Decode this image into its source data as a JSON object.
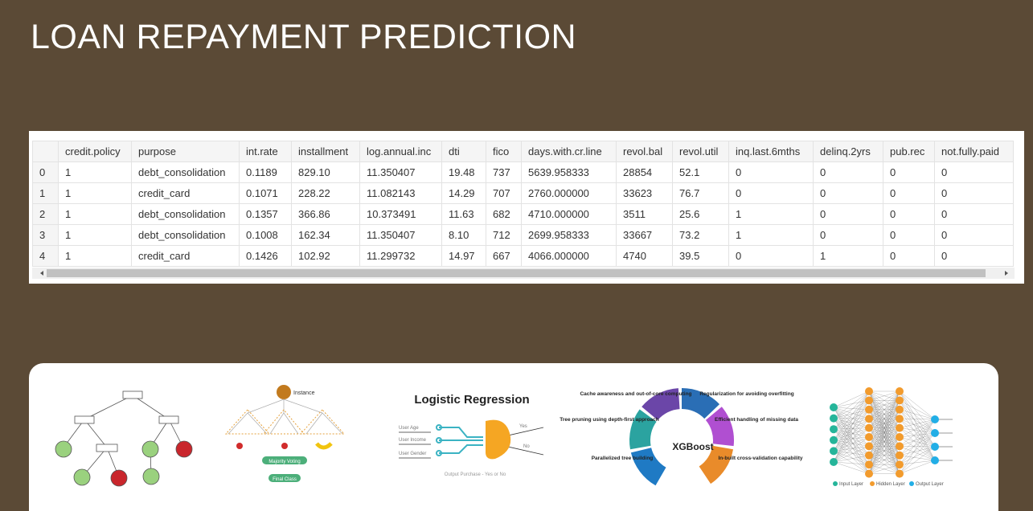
{
  "title": "LOAN REPAYMENT PREDICTION",
  "table": {
    "columns": [
      "credit.policy",
      "purpose",
      "int.rate",
      "installment",
      "log.annual.inc",
      "dti",
      "fico",
      "days.with.cr.line",
      "revol.bal",
      "revol.util",
      "inq.last.6mths",
      "delinq.2yrs",
      "pub.rec",
      "not.fully.paid"
    ],
    "rows": [
      [
        "0",
        "1",
        "debt_consolidation",
        "0.1189",
        "829.10",
        "11.350407",
        "19.48",
        "737",
        "5639.958333",
        "28854",
        "52.1",
        "0",
        "0",
        "0",
        "0"
      ],
      [
        "1",
        "1",
        "credit_card",
        "0.1071",
        "228.22",
        "11.082143",
        "14.29",
        "707",
        "2760.000000",
        "33623",
        "76.7",
        "0",
        "0",
        "0",
        "0"
      ],
      [
        "2",
        "1",
        "debt_consolidation",
        "0.1357",
        "366.86",
        "10.373491",
        "11.63",
        "682",
        "4710.000000",
        "3511",
        "25.6",
        "1",
        "0",
        "0",
        "0"
      ],
      [
        "3",
        "1",
        "debt_consolidation",
        "0.1008",
        "162.34",
        "11.350407",
        "8.10",
        "712",
        "2699.958333",
        "33667",
        "73.2",
        "1",
        "0",
        "0",
        "0"
      ],
      [
        "4",
        "1",
        "credit_card",
        "0.1426",
        "102.92",
        "11.299732",
        "14.97",
        "667",
        "4066.000000",
        "4740",
        "39.5",
        "0",
        "1",
        "0",
        "0"
      ]
    ]
  },
  "figures": {
    "random_forest": {
      "instance": "Instance",
      "voting": "Majority Voting",
      "final": "Final Class"
    },
    "logistic_regression": {
      "title": "Logistic Regression",
      "inputs": [
        "User Age",
        "User Income",
        "User Gender"
      ],
      "outputs": [
        "Yes",
        "No"
      ],
      "caption": "Output Purchase - Yes or No"
    },
    "xgboost": {
      "center": "XGBoost",
      "features": [
        "Cache awareness and out-of-core computing",
        "Regularization for avoiding overfitting",
        "Tree pruning using depth-first approach",
        "Efficient handling of missing data",
        "Parallelized tree building",
        "In-built cross-validation capability"
      ]
    },
    "neural_network": {
      "legend": [
        "Input Layer",
        "Hidden Layer",
        "Output Layer"
      ]
    }
  }
}
